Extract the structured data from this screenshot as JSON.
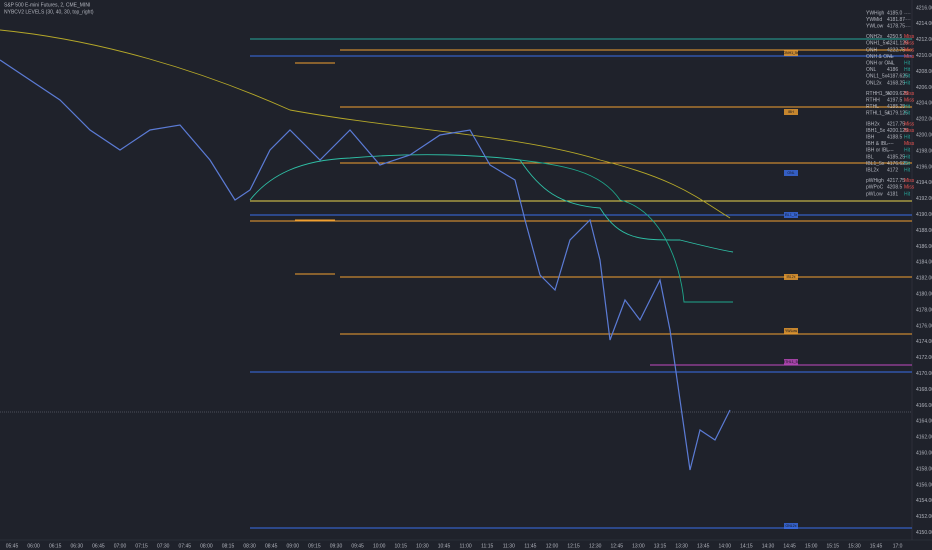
{
  "header": {
    "symbol": "S&P 500 E-mini Futures, 2, CME_MINI",
    "indicator": "NYBCV2 LEVELS (30, 40, 30, top_right)"
  },
  "time_axis": [
    "05:45",
    "06:00",
    "06:15",
    "06:30",
    "06:45",
    "07:00",
    "07:15",
    "07:30",
    "07:45",
    "08:00",
    "08:15",
    "08:30",
    "08:45",
    "09:00",
    "09:15",
    "09:30",
    "09:45",
    "10:00",
    "10:15",
    "10:30",
    "10:45",
    "11:00",
    "11:15",
    "11:30",
    "11:45",
    "12:00",
    "12:15",
    "12:30",
    "12:45",
    "13:00",
    "13:15",
    "13:30",
    "13:45",
    "14:00",
    "14:15",
    "14:30",
    "14:45",
    "15:00",
    "15:15",
    "15:30",
    "15:45",
    "17:0"
  ],
  "price_axis": [
    "4216.00",
    "4214.00",
    "4212.00",
    "4210.00",
    "4208.00",
    "4206.00",
    "4204.00",
    "4202.00",
    "4200.00",
    "4198.00",
    "4196.00",
    "4194.00",
    "4192.00",
    "4190.00",
    "4188.00",
    "4186.00",
    "4184.00",
    "4182.00",
    "4180.00",
    "4178.00",
    "4176.00",
    "4174.00",
    "4172.00",
    "4170.00",
    "4168.00",
    "4166.00",
    "4164.00",
    "4162.00",
    "4160.00",
    "4158.00",
    "4156.00",
    "4154.00",
    "4152.00",
    "4150.00"
  ],
  "table": {
    "rows": [
      [
        "YWHigh",
        "4185.0",
        "----"
      ],
      [
        "YWMid",
        "4181.87",
        "----"
      ],
      [
        "YWLow",
        "4178.75",
        "----"
      ],
      [
        "ONH2x",
        "4250.5",
        "Miss"
      ],
      [
        "ONH1_5x",
        "4241.125",
        "Miss"
      ],
      [
        "ONH",
        "4222.75",
        "Miss"
      ],
      [
        "ONH & ONL",
        "----",
        "Miss"
      ],
      [
        "ONH or ONL",
        "----",
        "Hit"
      ],
      [
        "ONL",
        "4186",
        "Hit"
      ],
      [
        "ONL1_5x",
        "4187.625",
        "Hit"
      ],
      [
        "ONL2x",
        "4168.25",
        "Hit"
      ],
      [
        "RTHH1_5x",
        "4209.625",
        "Miss"
      ],
      [
        "RTHH",
        "4197.5",
        "Miss"
      ],
      [
        "RTHL",
        "4185.25",
        "Hit"
      ],
      [
        "RTHL1_5x",
        "4179.125",
        "Hit"
      ],
      [
        "IBH2x",
        "4217.75",
        "Miss"
      ],
      [
        "IBH1_5x",
        "4200.125",
        "Miss"
      ],
      [
        "IBH",
        "4188.5",
        "Hit"
      ],
      [
        "IBH & IBL",
        "----",
        "Miss"
      ],
      [
        "IBH or IBL",
        "----",
        "Hit"
      ],
      [
        "IBL",
        "4185.25",
        "Hit"
      ],
      [
        "IBL1_5x",
        "4176.625",
        "Hit"
      ],
      [
        "IBL2x",
        "4172",
        "Hit"
      ],
      [
        "pWHigh",
        "4217.75",
        "Miss"
      ],
      [
        "pWPoC",
        "4208.5",
        "Miss"
      ],
      [
        "pWLow",
        "4181",
        "Hit"
      ]
    ]
  },
  "level_labels": [
    "ONH1_5x",
    "IBH",
    "ONL",
    "IBL1_5x",
    "IBL2x",
    "YWLow",
    "RTHL1_5x",
    "ONL2x"
  ]
}
